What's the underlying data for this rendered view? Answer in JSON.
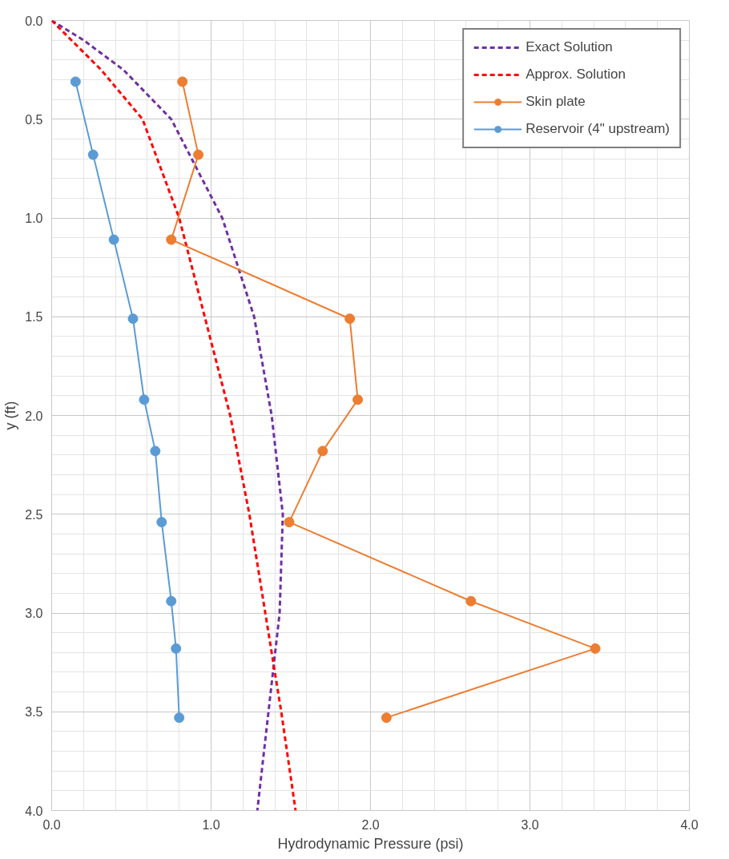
{
  "chart_data": {
    "type": "line",
    "xlabel": "Hydrodynamic Pressure (psi)",
    "ylabel": "y (ft)",
    "xlim": [
      0,
      4
    ],
    "ylim": [
      4,
      0
    ],
    "xticks": [
      {
        "value": 0,
        "label": "0.0"
      },
      {
        "value": 1,
        "label": "1.0"
      },
      {
        "value": 2,
        "label": "2.0"
      },
      {
        "value": 3,
        "label": "3.0"
      },
      {
        "value": 4,
        "label": "4.0"
      }
    ],
    "yticks": [
      {
        "value": 0,
        "label": "0.0"
      },
      {
        "value": 0.5,
        "label": "0.5"
      },
      {
        "value": 1,
        "label": "1.0"
      },
      {
        "value": 1.5,
        "label": "1.5"
      },
      {
        "value": 2,
        "label": "2.0"
      },
      {
        "value": 2.5,
        "label": "2.5"
      },
      {
        "value": 3,
        "label": "3.0"
      },
      {
        "value": 3.5,
        "label": "3.5"
      },
      {
        "value": 4,
        "label": "4.0"
      }
    ],
    "grid": true,
    "legend": "top right",
    "series": [
      {
        "name": "Exact Solution",
        "color": "#7030a0",
        "marker": "none",
        "line_style": "dashed",
        "x": [
          0,
          0.2,
          0.45,
          0.75,
          1.07,
          1.27,
          1.38,
          1.45,
          1.43,
          1.36,
          1.29
        ],
        "values": [
          0,
          0.1,
          0.25,
          0.5,
          1.0,
          1.5,
          2.0,
          2.5,
          3.0,
          3.5,
          4.0
        ]
      },
      {
        "name": "Approx. Solution",
        "color": "#ff0000",
        "marker": "none",
        "line_style": "dashed",
        "x": [
          0,
          0.31,
          0.57,
          0.8,
          0.96,
          1.12,
          1.24,
          1.34,
          1.44,
          1.53
        ],
        "values": [
          0,
          0.25,
          0.5,
          1.0,
          1.5,
          2.0,
          2.5,
          3.0,
          3.5,
          4.0
        ]
      },
      {
        "name": "Skin plate",
        "color": "#ed7d31",
        "marker": "circle",
        "line_style": "solid",
        "x": [
          0.82,
          0.92,
          0.75,
          1.87,
          1.92,
          1.7,
          1.49,
          2.63,
          3.41,
          2.1
        ],
        "values": [
          0.31,
          0.68,
          1.11,
          1.51,
          1.92,
          2.18,
          2.54,
          2.94,
          3.18,
          3.53
        ]
      },
      {
        "name": "Reservoir (4\" upstream)",
        "color": "#5b9bd5",
        "marker": "circle",
        "line_style": "solid",
        "x": [
          0.15,
          0.26,
          0.39,
          0.51,
          0.58,
          0.65,
          0.69,
          0.75,
          0.78,
          0.8
        ],
        "values": [
          0.31,
          0.68,
          1.11,
          1.51,
          1.92,
          2.18,
          2.54,
          2.94,
          3.18,
          3.53
        ]
      }
    ]
  }
}
